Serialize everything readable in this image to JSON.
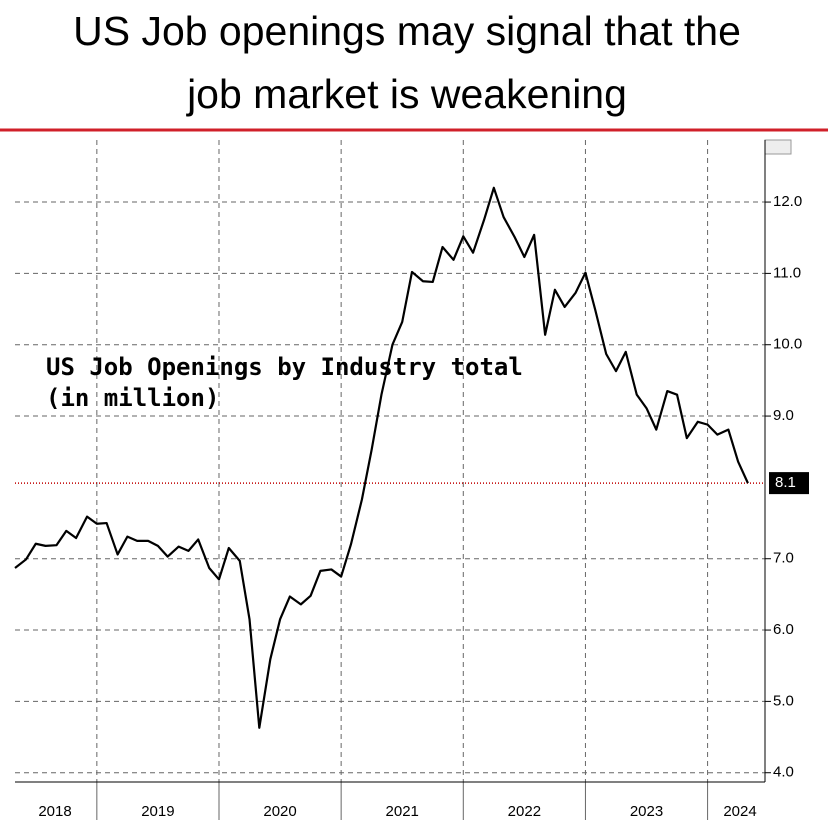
{
  "chart_data": {
    "type": "line",
    "title": [
      "US Job openings may signal that the",
      "job market is weakening"
    ],
    "annotation": [
      "US Job Openings by Industry total",
      "(in million)"
    ],
    "x": [
      2018.33,
      2018.42,
      2018.5,
      2018.58,
      2018.67,
      2018.75,
      2018.83,
      2018.92,
      2019,
      2019.08,
      2019.17,
      2019.25,
      2019.33,
      2019.42,
      2019.5,
      2019.58,
      2019.67,
      2019.75,
      2019.83,
      2019.92,
      2020,
      2020.08,
      2020.17,
      2020.25,
      2020.33,
      2020.42,
      2020.5,
      2020.58,
      2020.67,
      2020.75,
      2020.83,
      2020.92,
      2021,
      2021.08,
      2021.17,
      2021.25,
      2021.33,
      2021.42,
      2021.5,
      2021.58,
      2021.67,
      2021.75,
      2021.83,
      2021.92,
      2022,
      2022.08,
      2022.17,
      2022.25,
      2022.33,
      2022.42,
      2022.5,
      2022.58,
      2022.67,
      2022.75,
      2022.83,
      2022.92,
      2023,
      2023.08,
      2023.17,
      2023.25,
      2023.33,
      2023.42,
      2023.5,
      2023.58,
      2023.67,
      2023.75,
      2023.83,
      2023.92,
      2024,
      2024.08,
      2024.17,
      2024.25,
      2024.33
    ],
    "series": [
      {
        "name": "US Job Openings by Industry total",
        "color": "#000000",
        "values": [
          6.87,
          6.99,
          7.21,
          7.18,
          7.19,
          7.39,
          7.29,
          7.59,
          7.49,
          7.5,
          7.06,
          7.31,
          7.25,
          7.25,
          7.18,
          7.03,
          7.17,
          7.11,
          7.27,
          6.87,
          6.71,
          7.15,
          6.97,
          6.15,
          4.63,
          5.59,
          6.15,
          6.47,
          6.36,
          6.48,
          6.83,
          6.85,
          6.75,
          7.2,
          7.83,
          8.53,
          9.3,
          10.0,
          10.32,
          11.02,
          10.89,
          10.88,
          11.37,
          11.19,
          11.52,
          11.29,
          11.75,
          12.2,
          11.79,
          11.51,
          11.23,
          11.54,
          10.14,
          10.77,
          10.53,
          10.73,
          11.01,
          10.49,
          9.87,
          9.63,
          9.9,
          9.3,
          9.11,
          8.81,
          9.35,
          9.3,
          8.69,
          8.92,
          8.88,
          8.74,
          8.81,
          8.36,
          8.06
        ]
      }
    ],
    "xlim": [
      2018.33,
      2024.47
    ],
    "xticks": [
      2019,
      2020,
      2021,
      2022,
      2023,
      2024
    ],
    "x_labels": [
      2018,
      2019,
      2020,
      2021,
      2022,
      2023,
      2024
    ],
    "ylim": [
      3.87,
      12.87
    ],
    "yticks": [
      {
        "value": 4,
        "label": "4.0"
      },
      {
        "value": 5,
        "label": "5.0"
      },
      {
        "value": 6,
        "label": "6.0"
      },
      {
        "value": 7,
        "label": "7.0"
      },
      {
        "value": 9,
        "label": "9.0"
      },
      {
        "value": 10,
        "label": "10.0"
      },
      {
        "value": 11,
        "label": "11.0"
      },
      {
        "value": 12,
        "label": "12.0"
      }
    ],
    "hline": {
      "value": 8.06,
      "label": "8.1",
      "color": "#c00000"
    },
    "grid": true
  }
}
